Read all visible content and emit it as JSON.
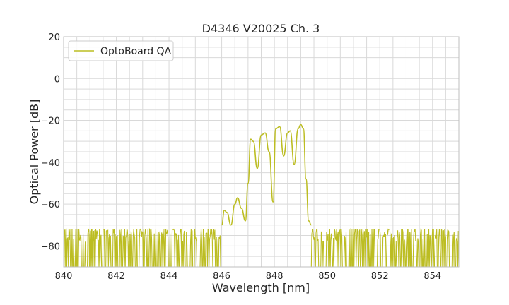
{
  "chart_data": {
    "type": "line",
    "title": "D4346 V20025 Ch. 3",
    "xlabel": "Wavelength [nm]",
    "ylabel": "Optical Power [dB]",
    "xlim": [
      840,
      855
    ],
    "ylim": [
      -90,
      20
    ],
    "xticks": [
      840,
      842,
      844,
      846,
      848,
      850,
      852,
      854
    ],
    "yticks": [
      20,
      0,
      -20,
      -40,
      -60,
      -80
    ],
    "grid": true,
    "legend": "top-left",
    "series": [
      {
        "name": "OptoBoard QA",
        "color": "#bcbd22",
        "noise_floor": {
          "x_ranges": [
            [
              840,
              846.0
            ],
            [
              849.4,
              855
            ]
          ],
          "top": -72,
          "bottom": -90,
          "base": -80
        },
        "x": [
          846.0,
          846.1,
          846.2,
          846.35,
          846.5,
          846.6,
          846.75,
          846.9,
          847.0,
          847.1,
          847.2,
          847.35,
          847.5,
          847.65,
          847.8,
          847.95,
          848.05,
          848.2,
          848.35,
          848.5,
          848.6,
          848.75,
          848.9,
          849.0,
          849.1,
          849.2,
          849.3,
          849.4
        ],
        "y": [
          -70,
          -63,
          -64,
          -70,
          -60,
          -57,
          -62,
          -68,
          -50,
          -29,
          -30,
          -43,
          -27,
          -26,
          -35,
          -59,
          -24,
          -23,
          -37,
          -26,
          -25,
          -41,
          -24,
          -22,
          -24,
          -48,
          -68,
          -70
        ]
      }
    ]
  }
}
